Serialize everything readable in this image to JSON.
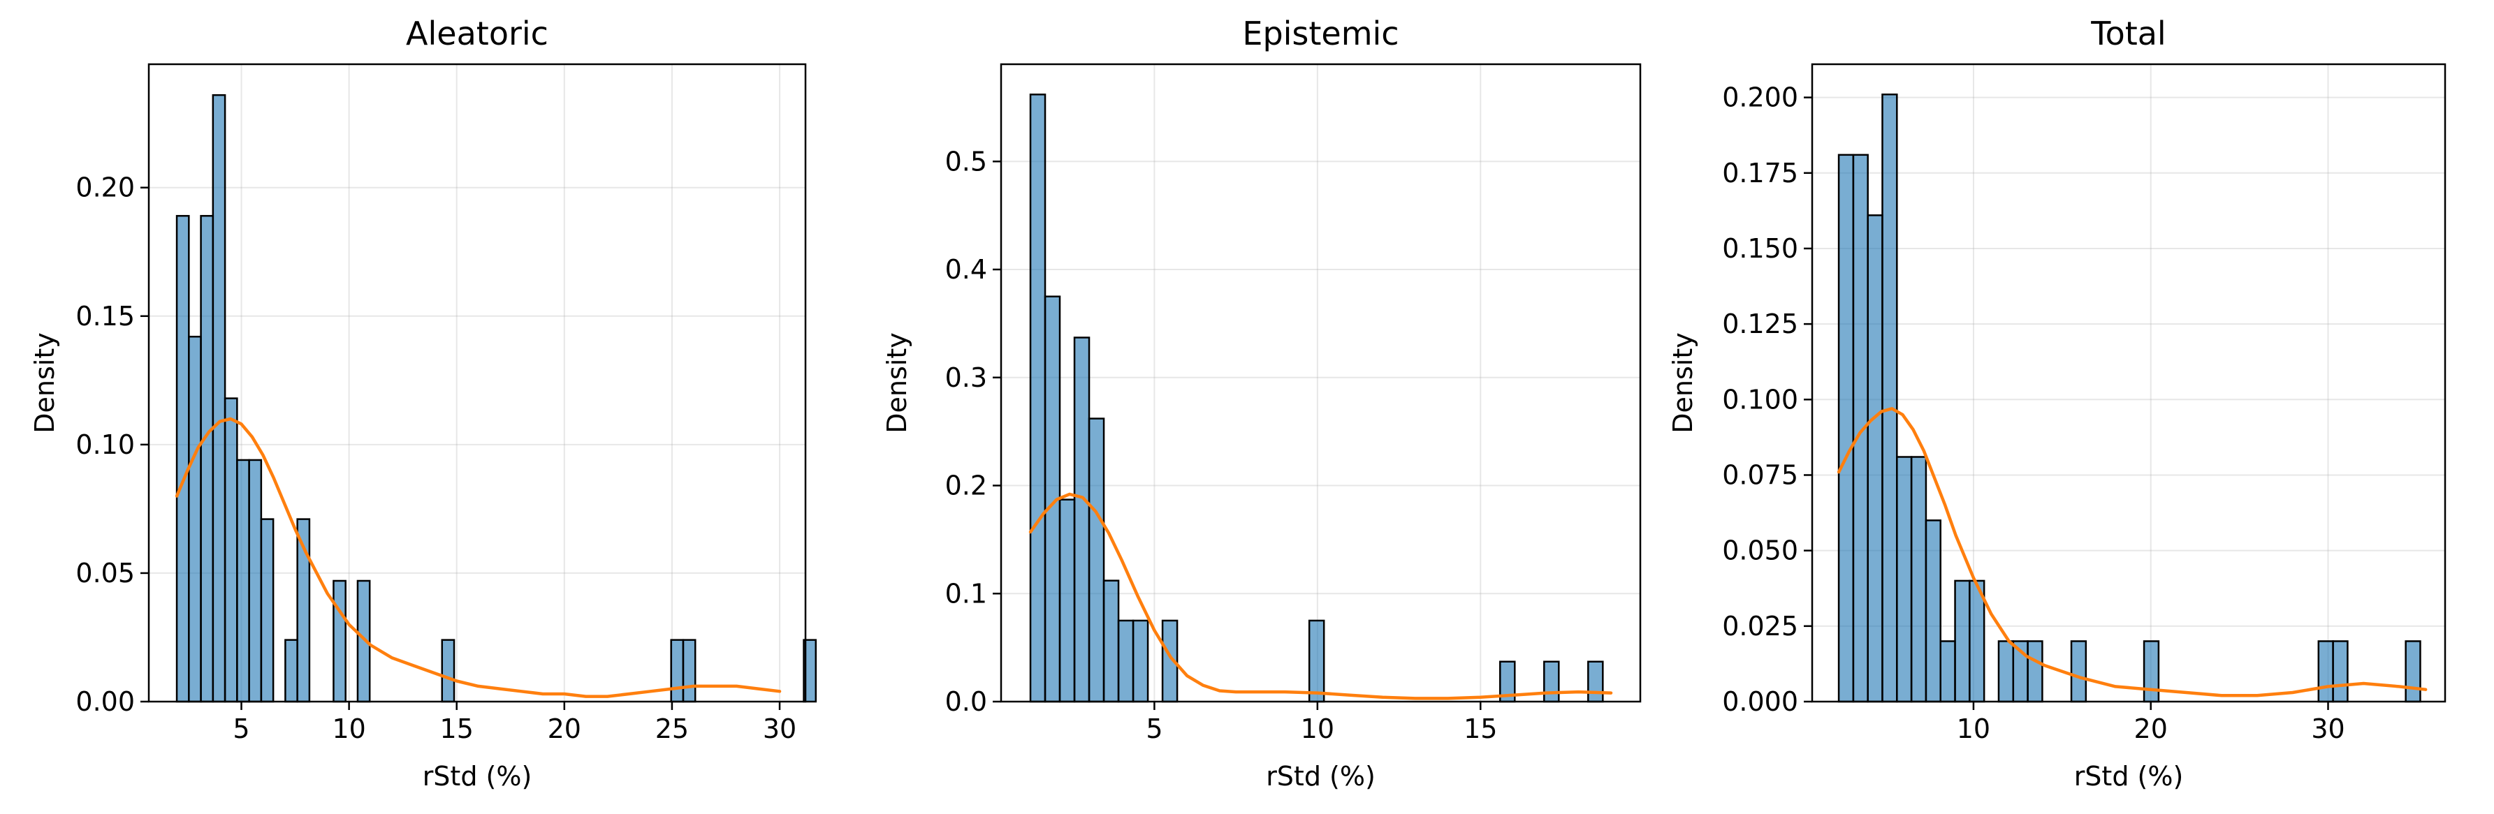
{
  "colors": {
    "bar": "#1f77b4",
    "kde": "#ff7f0e"
  },
  "chart_data": [
    {
      "type": "bar",
      "title": "Aleatoric",
      "xlabel": "rStd (%)",
      "ylabel": "Density",
      "grid": true,
      "xlim": [
        0.7,
        31.2
      ],
      "ylim": [
        0,
        0.248
      ],
      "xticks": [
        "5",
        "10",
        "15",
        "20",
        "25",
        "30"
      ],
      "xtick_values": [
        5,
        10,
        15,
        20,
        25,
        30
      ],
      "yticks": [
        "0.00",
        "0.05",
        "0.10",
        "0.15",
        "0.20"
      ],
      "ytick_values": [
        0,
        0.05,
        0.1,
        0.15,
        0.2
      ],
      "bin_start": 2.0,
      "bin_width": 0.56,
      "values": [
        0.189,
        0.142,
        0.189,
        0.236,
        0.118,
        0.094,
        0.094,
        0.071,
        0,
        0.024,
        0.071,
        0,
        0,
        0.047,
        0,
        0.047,
        0,
        0,
        0,
        0,
        0,
        0,
        0.024,
        0,
        0,
        0,
        0,
        0,
        0,
        0,
        0,
        0,
        0,
        0,
        0,
        0,
        0,
        0,
        0,
        0,
        0,
        0.024,
        0.024,
        0,
        0,
        0,
        0,
        0,
        0,
        0,
        0,
        0,
        0.024
      ],
      "kde": {
        "x": [
          2.0,
          2.5,
          3.0,
          3.5,
          4.0,
          4.5,
          5.0,
          5.5,
          6.0,
          6.5,
          7.0,
          7.5,
          8.0,
          8.5,
          9.0,
          9.5,
          10.0,
          11.0,
          12.0,
          13.0,
          14.0,
          15.0,
          16.0,
          17.0,
          18.0,
          19.0,
          20.0,
          21.0,
          22.0,
          23.0,
          24.0,
          25.0,
          26.0,
          27.0,
          28.0,
          29.0,
          30.0
        ],
        "y": [
          0.08,
          0.09,
          0.099,
          0.105,
          0.109,
          0.11,
          0.108,
          0.103,
          0.096,
          0.087,
          0.077,
          0.067,
          0.058,
          0.05,
          0.042,
          0.036,
          0.03,
          0.022,
          0.017,
          0.014,
          0.011,
          0.008,
          0.006,
          0.005,
          0.004,
          0.003,
          0.003,
          0.002,
          0.002,
          0.003,
          0.004,
          0.005,
          0.006,
          0.006,
          0.006,
          0.005,
          0.004
        ]
      }
    },
    {
      "type": "bar",
      "title": "Epistemic",
      "xlabel": "rStd (%)",
      "ylabel": "Density",
      "grid": true,
      "xlim": [
        0.3,
        19.9
      ],
      "ylim": [
        0,
        0.59
      ],
      "xticks": [
        "5",
        "10",
        "15"
      ],
      "xtick_values": [
        5,
        10,
        15
      ],
      "yticks": [
        "0.0",
        "0.1",
        "0.2",
        "0.3",
        "0.4",
        "0.5"
      ],
      "ytick_values": [
        0,
        0.1,
        0.2,
        0.3,
        0.4,
        0.5
      ],
      "bin_start": 1.2,
      "bin_width": 0.45,
      "values": [
        0.562,
        0.375,
        0.187,
        0.337,
        0.262,
        0.112,
        0.075,
        0.075,
        0,
        0.075,
        0,
        0,
        0,
        0,
        0,
        0,
        0,
        0,
        0,
        0.075,
        0,
        0,
        0,
        0,
        0,
        0,
        0,
        0,
        0,
        0,
        0,
        0,
        0.037,
        0,
        0,
        0.037,
        0,
        0,
        0.037
      ],
      "kde": {
        "x": [
          1.2,
          1.6,
          2.0,
          2.4,
          2.8,
          3.2,
          3.6,
          4.0,
          4.5,
          5.0,
          5.5,
          6.0,
          6.5,
          7.0,
          7.5,
          8.0,
          9.0,
          10.0,
          11.0,
          12.0,
          13.0,
          14.0,
          15.0,
          16.0,
          17.0,
          18.0,
          19.0
        ],
        "y": [
          0.157,
          0.174,
          0.187,
          0.192,
          0.189,
          0.176,
          0.156,
          0.131,
          0.097,
          0.066,
          0.041,
          0.024,
          0.015,
          0.01,
          0.009,
          0.009,
          0.009,
          0.008,
          0.006,
          0.004,
          0.003,
          0.003,
          0.004,
          0.006,
          0.008,
          0.009,
          0.008
        ]
      }
    },
    {
      "type": "bar",
      "title": "Total",
      "xlabel": "rStd (%)",
      "ylabel": "Density",
      "grid": true,
      "xlim": [
        0.9,
        36.6
      ],
      "ylim": [
        0,
        0.211
      ],
      "xticks": [
        "10",
        "20",
        "30"
      ],
      "xtick_values": [
        10,
        20,
        30
      ],
      "yticks": [
        "0.000",
        "0.025",
        "0.050",
        "0.075",
        "0.100",
        "0.125",
        "0.150",
        "0.175",
        "0.200"
      ],
      "ytick_values": [
        0,
        0.025,
        0.05,
        0.075,
        0.1,
        0.125,
        0.15,
        0.175,
        0.2
      ],
      "bin_start": 2.4,
      "bin_width": 0.82,
      "values": [
        0.181,
        0.181,
        0.161,
        0.201,
        0.081,
        0.081,
        0.06,
        0.02,
        0.04,
        0.04,
        0,
        0.02,
        0.02,
        0.02,
        0,
        0,
        0.02,
        0,
        0,
        0,
        0,
        0.02,
        0,
        0,
        0,
        0,
        0,
        0,
        0,
        0,
        0,
        0,
        0,
        0.02,
        0.02,
        0,
        0,
        0,
        0,
        0.02
      ],
      "kde": {
        "x": [
          2.4,
          3.0,
          3.6,
          4.2,
          4.8,
          5.4,
          6.0,
          6.6,
          7.2,
          7.8,
          8.4,
          9.0,
          10.0,
          11.0,
          12.0,
          13.0,
          14.0,
          15.0,
          16.0,
          18.0,
          20.0,
          22.0,
          24.0,
          26.0,
          28.0,
          30.0,
          32.0,
          34.0,
          35.5
        ],
        "y": [
          0.076,
          0.083,
          0.089,
          0.093,
          0.096,
          0.097,
          0.095,
          0.09,
          0.083,
          0.074,
          0.065,
          0.055,
          0.041,
          0.029,
          0.02,
          0.015,
          0.012,
          0.01,
          0.008,
          0.005,
          0.004,
          0.003,
          0.002,
          0.002,
          0.003,
          0.005,
          0.006,
          0.005,
          0.004
        ]
      }
    }
  ]
}
